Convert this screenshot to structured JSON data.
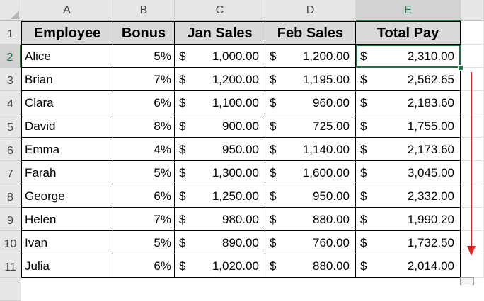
{
  "columns": [
    "A",
    "B",
    "C",
    "D",
    "E"
  ],
  "active_column": "E",
  "row_numbers": [
    "1",
    "2",
    "3",
    "4",
    "5",
    "6",
    "7",
    "8",
    "9",
    "10",
    "11"
  ],
  "active_row": "2",
  "table": {
    "headers": [
      "Employee",
      "Bonus",
      "Jan Sales",
      "Feb Sales",
      "Total Pay"
    ],
    "currency_symbol": "$",
    "rows": [
      {
        "employee": "Alice",
        "bonus": "5%",
        "jan": "1,000.00",
        "feb": "1,200.00",
        "total": "2,310.00"
      },
      {
        "employee": "Brian",
        "bonus": "7%",
        "jan": "1,200.00",
        "feb": "1,195.00",
        "total": "2,562.65"
      },
      {
        "employee": "Clara",
        "bonus": "6%",
        "jan": "1,100.00",
        "feb": "960.00",
        "total": "2,183.60"
      },
      {
        "employee": "David",
        "bonus": "8%",
        "jan": "900.00",
        "feb": "725.00",
        "total": "1,755.00"
      },
      {
        "employee": "Emma",
        "bonus": "4%",
        "jan": "950.00",
        "feb": "1,140.00",
        "total": "2,173.60"
      },
      {
        "employee": "Farah",
        "bonus": "5%",
        "jan": "1,300.00",
        "feb": "1,600.00",
        "total": "3,045.00"
      },
      {
        "employee": "George",
        "bonus": "6%",
        "jan": "1,250.00",
        "feb": "950.00",
        "total": "2,332.00"
      },
      {
        "employee": "Helen",
        "bonus": "7%",
        "jan": "980.00",
        "feb": "880.00",
        "total": "1,990.20"
      },
      {
        "employee": "Ivan",
        "bonus": "5%",
        "jan": "890.00",
        "feb": "760.00",
        "total": "1,732.50"
      },
      {
        "employee": "Julia",
        "bonus": "6%",
        "jan": "1,020.00",
        "feb": "880.00",
        "total": "2,014.00"
      }
    ]
  },
  "colors": {
    "header_fill": "#d9d9d9",
    "selection": "#217346",
    "drag_arrow": "#e02020"
  }
}
